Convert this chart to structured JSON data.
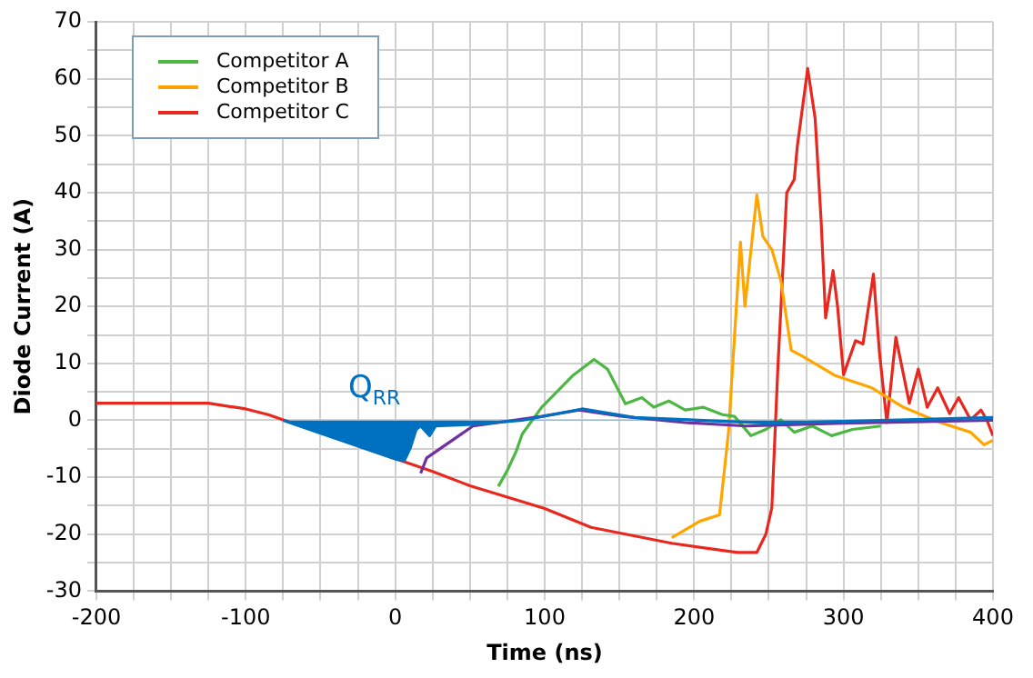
{
  "chart_data": {
    "type": "line",
    "xlabel": "Time (ns)",
    "ylabel": "Diode Current (A)",
    "xlim": [
      -200,
      400
    ],
    "ylim": [
      -30,
      70
    ],
    "xticks": [
      -200,
      {
        "value": -175,
        "label": null
      },
      {
        "value": -150,
        "label": null
      },
      {
        "value": -125,
        "label": null
      },
      -100,
      {
        "value": -75,
        "label": null
      },
      {
        "value": -50,
        "label": null
      },
      {
        "value": -25,
        "label": null
      },
      0,
      {
        "value": 25,
        "label": null
      },
      {
        "value": 50,
        "label": null
      },
      {
        "value": 75,
        "label": null
      },
      100,
      {
        "value": 125,
        "label": null
      },
      {
        "value": 150,
        "label": null
      },
      {
        "value": 175,
        "label": null
      },
      200,
      {
        "value": 225,
        "label": null
      },
      {
        "value": 250,
        "label": null
      },
      {
        "value": 275,
        "label": null
      },
      300,
      {
        "value": 325,
        "label": null
      },
      {
        "value": 350,
        "label": null
      },
      {
        "value": 375,
        "label": null
      },
      400
    ],
    "yticks": [
      -30,
      {
        "value": -25,
        "label": null
      },
      -20,
      {
        "value": -15,
        "label": null
      },
      -10,
      {
        "value": -5,
        "label": null
      },
      0,
      {
        "value": 5,
        "label": null
      },
      10,
      {
        "value": 15,
        "label": null
      },
      20,
      {
        "value": 25,
        "label": null
      },
      30,
      {
        "value": 35,
        "label": null
      },
      40,
      {
        "value": 45,
        "label": null
      },
      50,
      {
        "value": 55,
        "label": null
      },
      60,
      {
        "value": 65,
        "label": null
      },
      70
    ],
    "grid": true,
    "legend": "top left",
    "marker": "none",
    "line_style": "solid",
    "annotations": [
      "Q$_{RR}$"
    ],
    "series": [
      {
        "type": "area",
        "color": "#0070c0",
        "x": [
          -75,
          0,
          6,
          10,
          14,
          17,
          23,
          27,
          52,
          85,
          125,
          160,
          250,
          400
        ],
        "values": [
          0,
          -6.8,
          -7.1,
          -4.9,
          -1.6,
          -1,
          -2.7,
          -1,
          -0.7,
          0,
          2,
          0.5,
          -0.5,
          0.5
        ]
      },
      {
        "color": "#7030a0",
        "x": [
          17,
          21,
          52,
          98,
          123,
          152,
          194,
          235,
          300,
          400
        ],
        "values": [
          -9.3,
          -6.6,
          -1,
          0.7,
          1.8,
          0.7,
          -0.4,
          -1,
          -0.5,
          0
        ]
      },
      {
        "name": "Competitor A",
        "color": "#4cb843",
        "x": [
          69,
          75,
          81,
          85,
          98,
          119,
          133,
          142,
          154,
          165,
          173,
          183,
          194,
          206,
          219,
          227,
          238,
          248,
          258,
          267,
          279,
          292,
          306,
          325
        ],
        "values": [
          -11.6,
          -8.8,
          -5.4,
          -2.4,
          2.3,
          7.9,
          10.7,
          9,
          2.9,
          4,
          2.3,
          3.4,
          1.8,
          2.3,
          1,
          0.7,
          -2.7,
          -1.6,
          0.1,
          -2.1,
          -1,
          -2.7,
          -1.6,
          -1
        ]
      },
      {
        "name": "Competitor B",
        "color": "#ffa500",
        "x": [
          185,
          204,
          217,
          223,
          227,
          231,
          234,
          242,
          246,
          252,
          258,
          265,
          273,
          294,
          319,
          340,
          365,
          385,
          394,
          400
        ],
        "values": [
          -20.6,
          -17.7,
          -16.6,
          -2.1,
          14.6,
          31.3,
          20,
          39.6,
          32.3,
          30,
          24.6,
          12.3,
          11.2,
          7.9,
          5.7,
          2.3,
          -0.4,
          -2.1,
          -4.3,
          -3.5
        ]
      },
      {
        "name": "Competitor C",
        "color": "#e8281e",
        "x": [
          -200,
          -125,
          -100,
          -85,
          25,
          50,
          100,
          131,
          185,
          229,
          242,
          248,
          252,
          256,
          262,
          267,
          269,
          276,
          281,
          285,
          288,
          293,
          296,
          300,
          308,
          313,
          320,
          324,
          329,
          335,
          344,
          350,
          356,
          363,
          371,
          377,
          385,
          392,
          396,
          400
        ],
        "values": [
          3,
          3,
          2,
          1,
          -9,
          -11.5,
          -15.5,
          -18.8,
          -21.6,
          -23.2,
          -23.2,
          -20,
          -15.4,
          9,
          40,
          42.3,
          48,
          61.8,
          53,
          35,
          18,
          26.3,
          20,
          8,
          14,
          13.4,
          25.7,
          12,
          -0.4,
          14.6,
          3,
          9,
          2.3,
          5.7,
          1.2,
          4,
          0.1,
          1.8,
          0,
          -2.7
        ]
      }
    ]
  }
}
